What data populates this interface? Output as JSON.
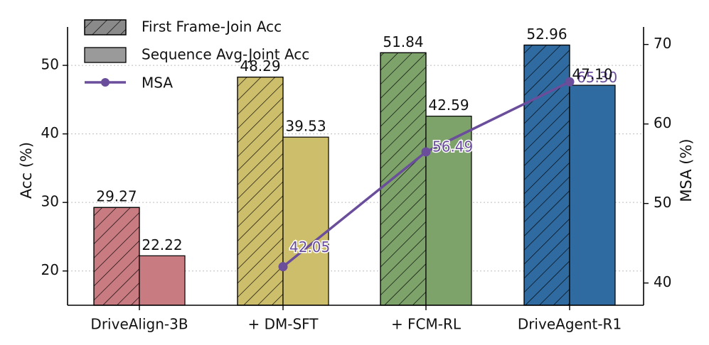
{
  "chart_data": {
    "type": "bar",
    "categories": [
      "DriveAlign-3B",
      "+ DM-SFT",
      "+ FCM-RL",
      "DriveAgent-R1"
    ],
    "series": [
      {
        "name": "First Frame-Join Acc",
        "values": [
          29.27,
          48.29,
          51.84,
          52.96
        ],
        "pattern": "hatched"
      },
      {
        "name": "Sequence Avg-Joint Acc",
        "values": [
          22.22,
          39.53,
          42.59,
          47.1
        ],
        "pattern": "solid"
      }
    ],
    "bar_labels": {
      "first": [
        "29.27",
        "48.29",
        "51.84",
        "52.96"
      ],
      "seq": [
        "22.22",
        "39.53",
        "42.59",
        "47.10"
      ]
    },
    "line_series": {
      "name": "MSA",
      "x_categories": [
        "+ DM-SFT",
        "+ FCM-RL",
        "DriveAgent-R1"
      ],
      "values": [
        42.05,
        56.49,
        65.3
      ],
      "labels": [
        "42.05",
        "56.49",
        "65.30"
      ],
      "color": "#6b4e9b",
      "axis": "right"
    },
    "category_colors": [
      "#c97b82",
      "#cdbe6c",
      "#7da36b",
      "#2f6aa0"
    ],
    "ylabel": "Acc (%)",
    "ylabel_right": "MSA (%)",
    "ylim": [
      15,
      55.6
    ],
    "ylim_right": [
      37.2,
      72.2
    ],
    "yticks": [
      20,
      30,
      40,
      50
    ],
    "yticks_right": [
      40,
      50,
      60,
      70
    ],
    "ytick_labels": [
      "20",
      "30",
      "40",
      "50"
    ],
    "ytick_labels_right": [
      "40",
      "50",
      "60",
      "70"
    ],
    "grid": "horizontal-dotted",
    "legend_position": "top-left",
    "title": "",
    "xlabel": ""
  }
}
